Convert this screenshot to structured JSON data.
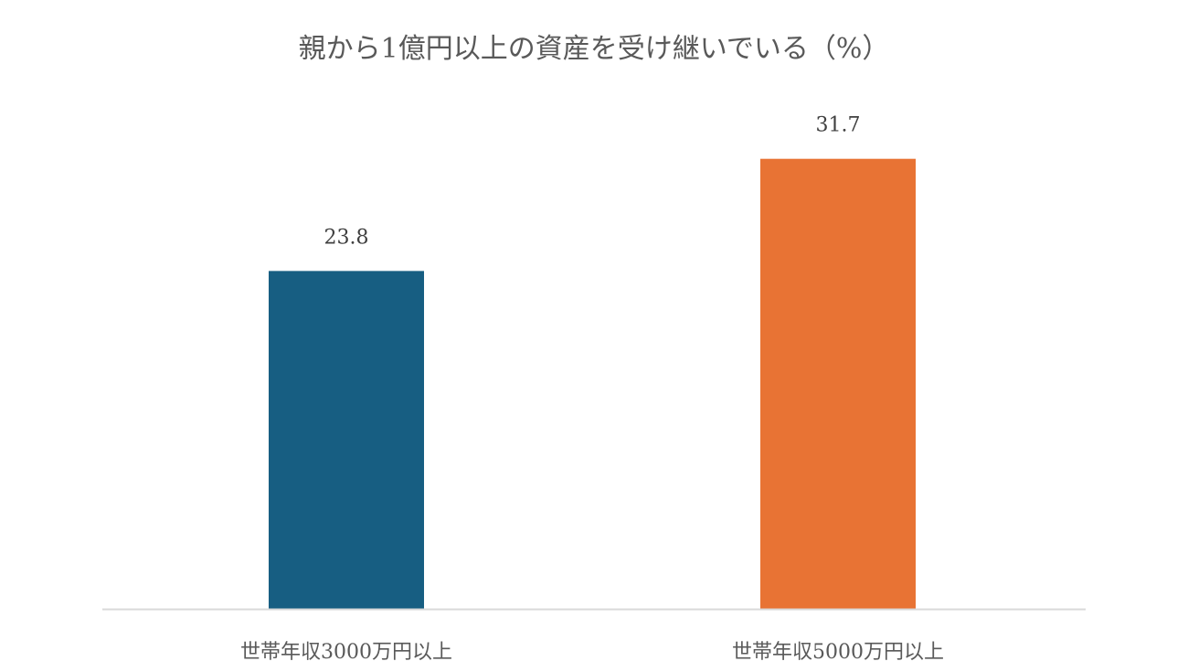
{
  "chart_data": {
    "type": "bar",
    "title": "親から1億円以上の資産を受け継いでいる（%）",
    "categories": [
      "世帯年収3000万円以上",
      "世帯年収5000万円以上"
    ],
    "values": [
      23.8,
      31.7
    ],
    "colors": [
      "#175E82",
      "#E87334"
    ],
    "xlabel": "",
    "ylabel": "",
    "ylim": [
      0,
      35
    ],
    "grid": false,
    "legend": "none",
    "data_labels": true,
    "axis_color": "#D9D9D9"
  }
}
